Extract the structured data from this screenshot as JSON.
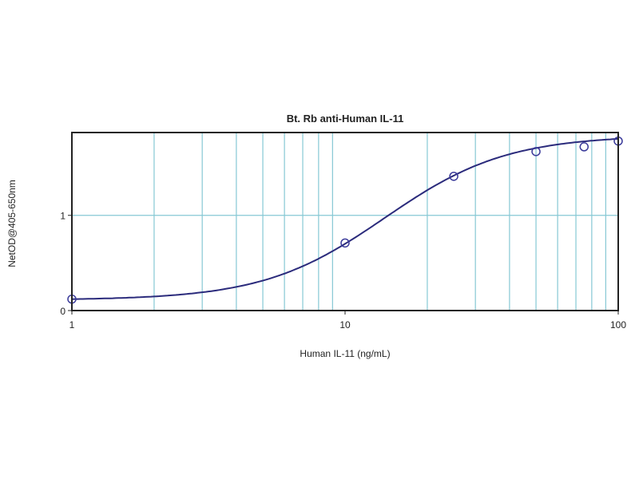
{
  "chart_data": {
    "type": "scatter",
    "title": "Bt. Rb anti-Human IL-11",
    "xlabel": "Human IL-11 (ng/mL)",
    "ylabel": "NetOD@405-650nm",
    "x_scale": "log",
    "xlim": [
      1,
      100
    ],
    "ylim": [
      0,
      1.87
    ],
    "x_ticks": [
      "1",
      "10",
      "100"
    ],
    "y_ticks": [
      "0",
      "1"
    ],
    "grid": true,
    "fit_curve": "4-parameter logistic",
    "series": [
      {
        "x": [
          1,
          10,
          25,
          50,
          75,
          100
        ],
        "y": [
          0.12,
          0.71,
          1.41,
          1.67,
          1.72,
          1.78
        ]
      }
    ],
    "colors": {
      "grid": "#86c8d4",
      "curve": "#2b2b7c",
      "marker": "#3a3a9a",
      "frame": "#222222"
    }
  }
}
